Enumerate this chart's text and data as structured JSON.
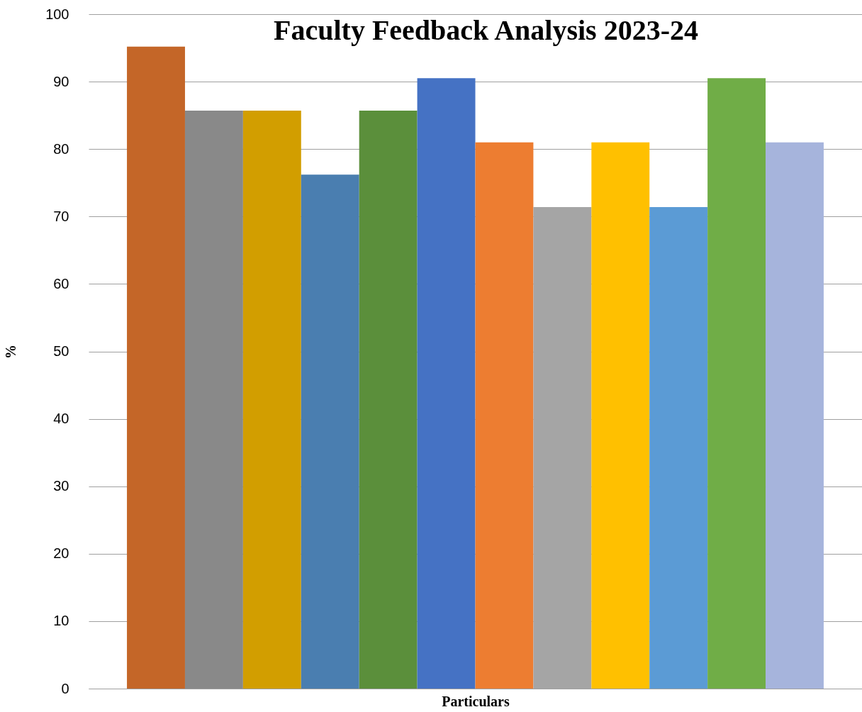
{
  "chart_data": {
    "type": "bar",
    "title": "Faculty Feedback Analysis 2023-24",
    "xlabel": "Particulars",
    "ylabel": "%",
    "categories": [
      null,
      null,
      null,
      null,
      null,
      null,
      null,
      null,
      null,
      null,
      null,
      null
    ],
    "values": [
      95.2,
      85.7,
      85.7,
      76.2,
      85.7,
      90.5,
      81,
      71.4,
      81,
      71.4,
      90.5,
      81
    ],
    "colors": [
      "#c46628",
      "#898989",
      "#d29e00",
      "#4a7eb0",
      "#5b8f3b",
      "#4572c4",
      "#ed7d31",
      "#a5a5a5",
      "#ffc000",
      "#5b9bd5",
      "#70ad47",
      "#a6b4dc"
    ],
    "ylim": [
      0,
      100
    ],
    "yticks": [
      0,
      10,
      20,
      30,
      40,
      50,
      60,
      70,
      80,
      90,
      100
    ],
    "grid": "y"
  }
}
